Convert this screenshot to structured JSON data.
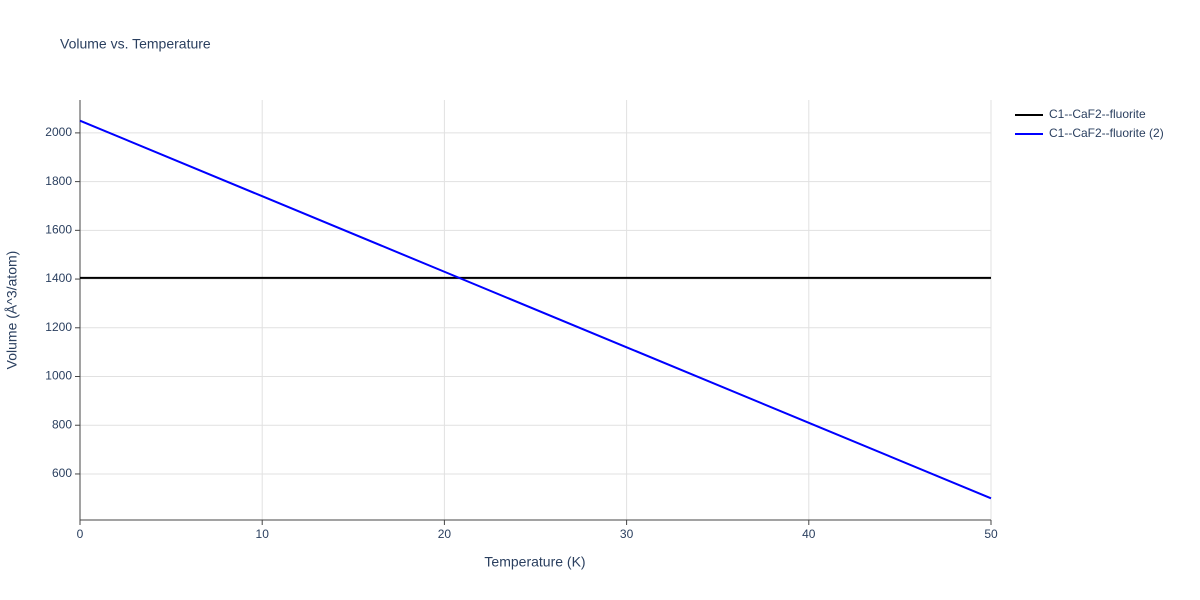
{
  "chart_data": {
    "type": "line",
    "title": "Volume vs. Temperature",
    "x_label": "Temperature (K)",
    "y_label": "Volume (Å^3/atom)",
    "x": [
      0,
      10,
      20,
      30,
      40,
      50
    ],
    "series": [
      {
        "name": "C1--CaF2--fluorite",
        "color": "#000000",
        "values": [
          1405,
          1405,
          1405,
          1405,
          1405,
          1405
        ]
      },
      {
        "name": "C1--CaF2--fluorite (2)",
        "color": "#0000ff",
        "values": [
          2050,
          1740,
          1430,
          1120,
          810,
          500
        ]
      }
    ],
    "xlim": [
      0,
      50
    ],
    "xticks": [
      0,
      10,
      20,
      30,
      40,
      50
    ],
    "ylim": [
      411,
      2135
    ],
    "yticks": [
      600,
      800,
      1000,
      1200,
      1400,
      1600,
      1800,
      2000
    ],
    "grid": true,
    "legend": "right"
  }
}
